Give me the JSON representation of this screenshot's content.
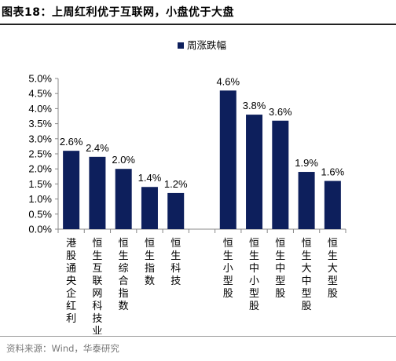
{
  "header": {
    "title": "图表18：上周红利优于互联网，小盘优于大盘"
  },
  "footer": {
    "source": "资料来源：Wind，华泰研究"
  },
  "chart_data": {
    "type": "bar",
    "title": "",
    "xlabel": "",
    "ylabel": "",
    "legend": "top-center",
    "grid": false,
    "ylim": [
      0,
      5
    ],
    "yticks": [
      "0.0%",
      "0.5%",
      "1.0%",
      "1.5%",
      "2.0%",
      "2.5%",
      "3.0%",
      "3.5%",
      "4.0%",
      "4.5%",
      "5.0%"
    ],
    "bar_color": "#0d1f5c",
    "series": [
      {
        "name": "周涨跌幅"
      }
    ],
    "categories": [
      "港股通央企红利",
      "恒生互联网科技业",
      "恒生综合指数",
      "恒生指数",
      "恒生科技",
      "",
      "恒生小型股",
      "恒生中小型股",
      "恒生中型股",
      "恒生大中型股",
      "恒生大型股"
    ],
    "values": [
      2.6,
      2.4,
      2.0,
      1.4,
      1.2,
      null,
      4.6,
      3.8,
      3.6,
      1.9,
      1.6
    ],
    "data_labels": [
      "2.6%",
      "2.4%",
      "2.0%",
      "1.4%",
      "1.2%",
      "",
      "4.6%",
      "3.8%",
      "3.6%",
      "1.9%",
      "1.6%"
    ]
  }
}
